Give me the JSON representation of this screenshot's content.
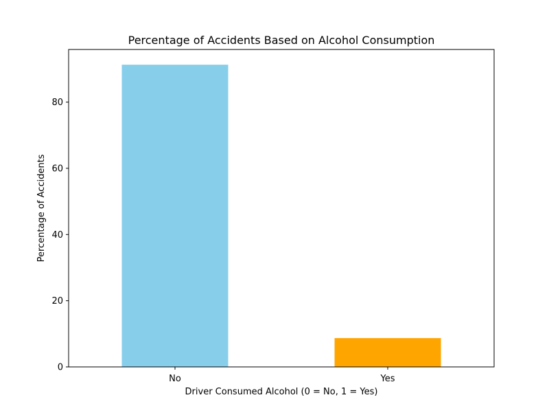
{
  "chart_data": {
    "type": "bar",
    "title": "Percentage of Accidents Based on Alcohol Consumption",
    "xlabel": "Driver Consumed Alcohol (0 = No, 1 = Yes)",
    "ylabel": "Percentage of Accidents",
    "categories": [
      "No",
      "Yes"
    ],
    "values": [
      91.3,
      8.7
    ],
    "colors": [
      "#87ceeb",
      "#ffa500"
    ],
    "ylim": [
      0,
      95.9
    ],
    "yticks": [
      0,
      20,
      40,
      60,
      80
    ],
    "grid": false,
    "legend": "none"
  }
}
